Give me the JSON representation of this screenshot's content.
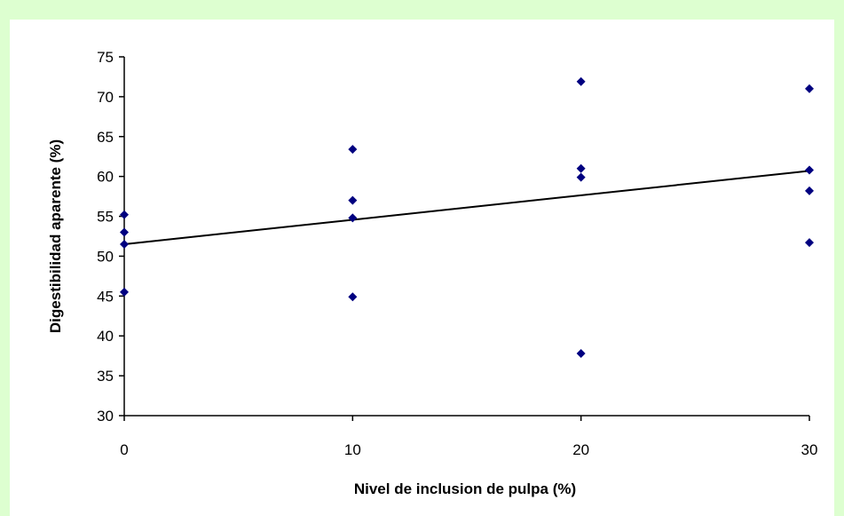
{
  "chart_data": {
    "type": "scatter",
    "title": "",
    "xlabel": "Nivel de inclusion de pulpa (%)",
    "ylabel": "Digestibilidad aparente (%)",
    "xlim": [
      0,
      30
    ],
    "ylim": [
      30,
      75
    ],
    "x_ticks": [
      0,
      10,
      20,
      30
    ],
    "y_ticks": [
      30,
      35,
      40,
      45,
      50,
      55,
      60,
      65,
      70,
      75
    ],
    "grid": false,
    "legend": "none",
    "marker_color": "#000080",
    "trendline_color": "#000000",
    "points": [
      {
        "x": 0,
        "y": 55.2
      },
      {
        "x": 0,
        "y": 53.0
      },
      {
        "x": 0,
        "y": 51.5
      },
      {
        "x": 0,
        "y": 45.5
      },
      {
        "x": 10,
        "y": 63.4
      },
      {
        "x": 10,
        "y": 57.0
      },
      {
        "x": 10,
        "y": 54.8
      },
      {
        "x": 10,
        "y": 44.9
      },
      {
        "x": 20,
        "y": 71.9
      },
      {
        "x": 20,
        "y": 61.0
      },
      {
        "x": 20,
        "y": 59.9
      },
      {
        "x": 20,
        "y": 37.8
      },
      {
        "x": 30,
        "y": 71.0
      },
      {
        "x": 30,
        "y": 60.8
      },
      {
        "x": 30,
        "y": 58.2
      },
      {
        "x": 30,
        "y": 51.7
      }
    ],
    "trendline": {
      "x": [
        0,
        30
      ],
      "y": [
        51.5,
        60.7
      ]
    }
  }
}
